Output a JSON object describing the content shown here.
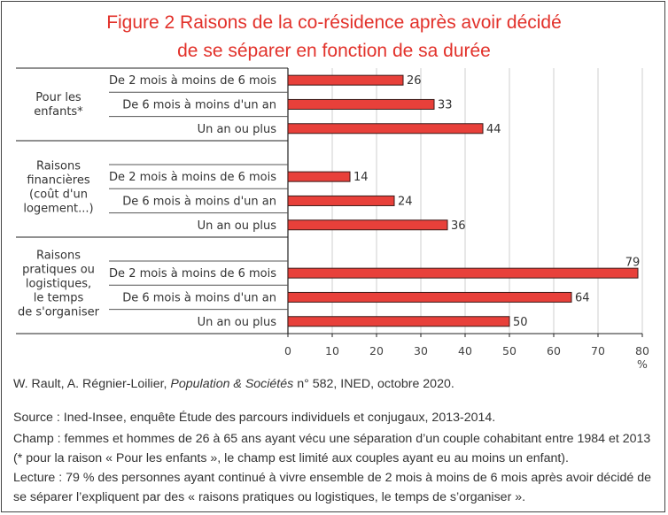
{
  "title": {
    "line1": "Figure 2 Raisons de la co-résidence après avoir décidé",
    "line2": "de se séparer en fonction de sa durée"
  },
  "chart_data": {
    "type": "bar",
    "orientation": "horizontal",
    "title": "Figure 2 Raisons de la co-résidence après avoir décidé de se séparer en fonction de sa durée",
    "xlabel": "%",
    "ylabel": "",
    "xlim": [
      0,
      80
    ],
    "xticks": [
      0,
      10,
      20,
      30,
      40,
      50,
      60,
      70,
      80
    ],
    "grid": true,
    "bar_color": "#e8403a",
    "groups": [
      {
        "label_lines": [
          "Pour les",
          "enfants*"
        ],
        "label": "Pour les enfants*",
        "categories": [
          "De 2 mois à moins de 6 mois",
          "De 6 mois à moins d'un an",
          "Un an ou plus"
        ],
        "values": [
          26,
          33,
          44
        ]
      },
      {
        "label_lines": [
          "Raisons",
          "financières",
          "(coût d'un",
          "logement...)"
        ],
        "label": "Raisons financières (coût d'un logement...)",
        "categories": [
          "De 2 mois à moins de 6 mois",
          "De 6 mois à moins d'un an",
          "Un an ou plus"
        ],
        "values": [
          14,
          24,
          36
        ]
      },
      {
        "label_lines": [
          "Raisons",
          "pratiques ou",
          "logistiques,",
          "le temps",
          "de s'organiser"
        ],
        "label": "Raisons pratiques ou logistiques, le temps de s'organiser",
        "categories": [
          "De 2 mois à moins de 6 mois",
          "De 6 mois à moins d'un an",
          "Un an ou plus"
        ],
        "values": [
          79,
          64,
          50
        ]
      }
    ]
  },
  "footer": {
    "credit_authors": "W. Rault, A. Régnier-Loilier, ",
    "credit_journal": "Population & Sociétés",
    "credit_rest": " n° 582, INED, octobre 2020.",
    "source": "Source : Ined-Insee, enquête Étude des parcours individuels et conjugaux, 2013-2014.",
    "champ": "Champ : femmes et hommes de 26 à 65 ans ayant vécu une séparation d’un couple cohabitant entre 1984 et 2013 (* pour la raison « Pour les enfants », le champ est limité aux couples ayant eu au moins un enfant).",
    "lecture": "Lecture : 79 % des personnes ayant continué à vivre ensemble de 2 mois à moins de 6 mois après avoir décidé de se séparer l’expliquent par des « raisons pratiques ou logistiques, le temps de s’organiser »."
  }
}
